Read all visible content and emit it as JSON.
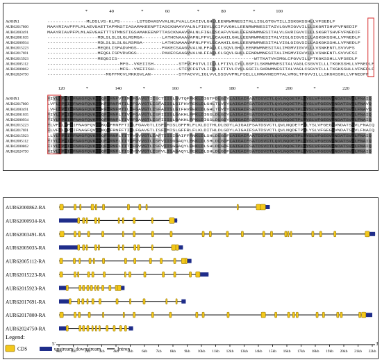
{
  "alignment": {
    "block1": {
      "ruler": [
        {
          "label": "*",
          "col": 14
        },
        {
          "label": "40",
          "col": 23
        },
        {
          "label": "*",
          "col": 34
        },
        {
          "label": "60",
          "col": 43
        },
        {
          "label": "*",
          "col": 54
        },
        {
          "label": "80",
          "col": 63
        },
        {
          "label": "*",
          "col": 74
        },
        {
          "label": "100",
          "col": 83
        }
      ],
      "rows": [
        {
          "name": "AtNHX1",
          "seq": "--------------MLDSLVS-KLPS------LSTSDHASVVALNLFVALLCACIVLGHLLEENRWMNESITALLIGLGTGVTILLISKGKSSHLLVFSEDLF"
        },
        {
          "name": "AUR62017800",
          "seq": "MAAYRIAVPFPLMLAEVGAETTAPMNSTIASAMAKEENPTIASCKNAAVVALNLFIGVLLCIFVVGHLLEENRWMNESITAIVLGVRIGVVILLLSKGRTSHVFVFNEDIF"
        },
        {
          "name": "AUR62003491",
          "seq": "MAAYRIAVPFPLMLAEVGAETTTSTMNSTIGSAMAKEENPTTASCKNAAVVALNLFIGLLSCAFVVGHLLEENRWMNESITALVLGVRIGVVILLLSKGRTSHVFVFNEDIF"
        },
        {
          "name": "AUR62001035",
          "seq": "------------------MDLSLSLSLGLRSMGA-------LATHCNAAAVAPNLFFVLLCAAHILGHLLEENRWMNESITALVIGLGIGVSILLASKGKSSHLLVFNEDLF"
        },
        {
          "name": "AUR62000934",
          "seq": "------------------MDLSLSLSLGLRSMGA-------LATHCNAAAVAPNLFFVLLCAAHILGHLLEENRWMNESITALVIGLGIGVSILLASKGKSSHLLVFNEDLF"
        },
        {
          "name": "AUR62015223",
          "seq": "------------------MEQGLISPADVHGS---------PAKECSAAGVVALNLFFALLCLSQVLGHLLEENRWMNESITALIMGMVIGVVLLLVSNKENTLSVVVFS"
        },
        {
          "name": "AUR62017691",
          "seq": "------------------MEQGLISPVDVRGS---------PAKECGAAGVVALNLFFALLCLSQVLGHLLEENRWMNESITALIMGMVIGVVLLLVSNKENTLSVVVFSI"
        },
        {
          "name": "AUR62015923",
          "seq": "------------------MEQGIIS-------------------------------------------------WTTKATVHIMGLCFGVVILLFTKGKSSHLLVFSEDLF"
        },
        {
          "name": "AUR62005112",
          "seq": "--------------------------MFG--VKEIISH---------STFVCFGTVLIILLLFTIVLCYLLGSFILSKRWMNESITALVAGLCSGVVILLLTKGKSSHLLVFNEDLF"
        },
        {
          "name": "AUR62000862",
          "seq": "--------------------------MFG--VKEIISH---------STFVCFGTVLIILLLFTIVLCYLLGSFILSKRWMNESITALVAGLCSGVVILLLTKGKSSHLLVFNEDLF"
        },
        {
          "name": "AUR62024750",
          "seq": "---------------------MGFFMCVLMKKGVLAN----------STFACVVLIGLVVLSSSVVPRLFSELLLHRWVNECMTALVMGLTFGVVILLLSKGKSSHLLVFNEDFF"
        }
      ]
    },
    "block2": {
      "ruler": [
        {
          "label": "120",
          "col": 5
        },
        {
          "label": "*",
          "col": 14
        },
        {
          "label": "140",
          "col": 25
        },
        {
          "label": "*",
          "col": 34
        },
        {
          "label": "160",
          "col": 45
        },
        {
          "label": "*",
          "col": 54
        },
        {
          "label": "180",
          "col": 65
        },
        {
          "label": "*",
          "col": 74
        },
        {
          "label": "200",
          "col": 85
        },
        {
          "label": "*",
          "col": 94
        },
        {
          "label": "220",
          "col": 105
        }
      ],
      "rows": [
        {
          "name": "AtNHX1",
          "seq": "FIYLLPPIIFNAGFQVKKKQFFRNFVTIMLFGAVGTIISCTIISLGVTQFFKKLDIGTFDLGDYLAIGAIFAATDSVCTLQVLNQDETPLLYSLVFGEGVVNDATSVVLFNAIQ"
        },
        {
          "name": "AUR62017800",
          "seq": "LVFLLPPIIFNAGFQVKKKKFFRNFMTILLFGAVGTLISFAIISLGIFHVFEKLDLGHLTLVDYLAIGAIFSATDSVCTLQVLNQDETPLLYSLVFGEGVVNDATSVVLFNAVQ"
        },
        {
          "name": "AUR62003491",
          "seq": "LVFLLPPIIFNAGFQVKKKKFFRNFMTILLFGAVGTLISFAIISLGIFHVFEKLDLGHLTLVDYLAIGAIFSATDSVCTLQVLNQDETPLLYSLVFGEGVVNDATSVVLFNAVQ"
        },
        {
          "name": "AUR62001035",
          "seq": "FIYLLPPIIFNAGFQVKKKQFFRNFLTIVLFGAVGTLISFIIISLGAKHLFPKLDIGSLDLGDYLAIGAIFSATDSVCTLQVLNQDETPLLYSLVFGEGVVNDATSVVLFNAIQ"
        },
        {
          "name": "AUR62000934",
          "seq": "FIYLLPPIIFNAGFQVKKKQFFRNFLTIVLFGAVGTLISFIIISLGAKHLFPKLDIGSLDLGDYLAIGAIFSATDSVCTLQVLNQDETPLLYSLVFGEGVVNDATSVVLFNAIQ"
        },
        {
          "name": "AUR62015223",
          "seq": "FLVFLLPPIIFNAGFQVKKKQFFRNFFTILLFGAVGTLISFIMISLGFFRLFLKLDITHLDLGDYLAIGAIFSATDSVCTLQVLNQDETPLLYSLVFGEGVVNDATSVVLFNAIQ"
        },
        {
          "name": "AUR62017691",
          "seq": "FLVFLLPPIIFNAGFQVKKKQFFRNFFTILLFGAVGTLISFIMISLGFFRLFLKLDITHLDLGDYLAIGAIFSATDSVCTLQVLNQDETPLLYSLVFGEGVVNDATSVVLFNAIQ"
        },
        {
          "name": "AUR62015923",
          "seq": "LLYLLPPIIFNAGFQVKKKQFFRNFLTITLYGVVGTLIAFTIISIGAIFFFNKLDLSHLDLGDFLAIGAIFAATDSVCTLQVLNQDETPLLYSLVFGEGVVNDATSVVLFNAIQ"
        },
        {
          "name": "AUR62005112",
          "seq": "FIYLLPPIIFNAGFQVKKKQFFRNFLTITLFGVVGTLISFVIISGGAQYLFKKLDLSHLDLGDFLAIGAIFSATDSVCTLQVLNQDETPLLYSLVFGEGVVNDATSVVLFNAIQ"
        },
        {
          "name": "AUR62000862",
          "seq": "FIYLLPPIIFNAGFQVKKKQFFRNFLTITLFGVVGTLISFVIISGGAQYLFKKLDLSHLDLGDFLAIGAIFSATDSVCTLQVLNQDETPLLYSLVFGEGVVNDATSVVLFNAIQ"
        },
        {
          "name": "AUR62024750",
          "seq": "FIYLLPPIIFNAGFQVKKKQFFRNFLTISLYGVVGTLISFVLISAGAQYLFEKLDLSHLDLGDFLAIGAIFSATDSVCTLQVLNQDETPLLYSLVFGEGVVNDATSVVLFNAIQ"
        }
      ]
    }
  },
  "gene_structure": {
    "axis": {
      "start_label": "5'",
      "end_label": "3'",
      "ticks": [
        "0kb",
        "1kb",
        "2kb",
        "3kb",
        "4kb",
        "5kb",
        "6kb",
        "7kb",
        "8kb",
        "9kb",
        "10kb",
        "11kb",
        "12kb",
        "13kb",
        "14kb",
        "15kb",
        "16kb",
        "17kb",
        "18kb",
        "19kb",
        "20kb",
        "21kb",
        "22kb"
      ]
    },
    "genes": [
      {
        "name": "AUR62000862-RA",
        "length": 14.8,
        "utr": [
          [
            14.5,
            14.8
          ]
        ],
        "cds": [
          [
            0.05,
            0.3
          ],
          [
            1.05,
            1.2
          ],
          [
            1.45,
            1.55
          ],
          [
            2.25,
            2.45
          ],
          [
            2.55,
            2.65
          ],
          [
            3.05,
            3.2
          ],
          [
            4.8,
            4.95
          ],
          [
            5.6,
            5.75
          ],
          [
            6.1,
            6.2
          ],
          [
            12.5,
            12.6
          ],
          [
            13.85,
            14.15
          ],
          [
            14.15,
            14.5
          ]
        ]
      },
      {
        "name": "AUR62000934-RA",
        "length": 8.3,
        "utr": [
          [
            0.0,
            1.3
          ],
          [
            8.1,
            8.3
          ]
        ],
        "cds": [
          [
            1.3,
            1.45
          ],
          [
            1.65,
            1.8
          ],
          [
            1.9,
            2.0
          ],
          [
            2.5,
            2.65
          ],
          [
            2.75,
            2.85
          ],
          [
            4.15,
            4.25
          ],
          [
            4.45,
            4.55
          ],
          [
            5.2,
            5.35
          ],
          [
            6.5,
            6.6
          ],
          [
            7.75,
            8.1
          ]
        ]
      },
      {
        "name": "AUR62003491-RA",
        "length": 22.2,
        "utr": [
          [
            21.8,
            22.2
          ]
        ],
        "cds": [
          [
            0.05,
            0.35
          ],
          [
            1.05,
            1.2
          ],
          [
            1.35,
            1.5
          ],
          [
            2.0,
            2.15
          ],
          [
            3.0,
            3.15
          ],
          [
            4.45,
            4.55
          ],
          [
            5.2,
            5.35
          ],
          [
            6.5,
            6.65
          ],
          [
            7.8,
            7.95
          ],
          [
            10.05,
            10.2
          ],
          [
            10.55,
            10.7
          ],
          [
            11.75,
            11.9
          ],
          [
            12.8,
            12.95
          ],
          [
            14.3,
            14.45
          ],
          [
            14.85,
            15.0
          ],
          [
            15.85,
            16.0
          ],
          [
            16.05,
            16.15
          ],
          [
            16.25,
            16.35
          ],
          [
            17.75,
            17.9
          ],
          [
            18.3,
            18.45
          ],
          [
            19.3,
            19.45
          ],
          [
            21.5,
            21.8
          ]
        ]
      },
      {
        "name": "AUR62005035-RA",
        "length": 8.7,
        "utr": [
          [
            0.0,
            1.3
          ],
          [
            8.4,
            8.7
          ]
        ],
        "cds": [
          [
            1.3,
            1.45
          ],
          [
            1.65,
            1.8
          ],
          [
            1.9,
            2.0
          ],
          [
            2.5,
            2.65
          ],
          [
            2.75,
            2.85
          ],
          [
            4.15,
            4.25
          ],
          [
            4.45,
            4.55
          ],
          [
            5.25,
            5.4
          ],
          [
            5.5,
            5.65
          ],
          [
            6.5,
            6.6
          ],
          [
            7.9,
            8.2
          ],
          [
            8.2,
            8.4
          ]
        ]
      },
      {
        "name": "AUR62005112-RA",
        "length": 9.3,
        "utr": [
          [
            9.0,
            9.3
          ]
        ],
        "cds": [
          [
            0.05,
            0.25
          ],
          [
            1.0,
            1.15
          ],
          [
            1.4,
            1.5
          ],
          [
            2.1,
            2.25
          ],
          [
            2.4,
            2.5
          ],
          [
            3.05,
            3.2
          ],
          [
            4.6,
            4.75
          ],
          [
            5.25,
            5.4
          ],
          [
            6.35,
            6.5
          ],
          [
            7.1,
            7.25
          ],
          [
            8.05,
            8.2
          ],
          [
            8.6,
            8.85
          ],
          [
            8.85,
            9.0
          ]
        ]
      },
      {
        "name": "AUR62015223-RA",
        "length": 10.5,
        "utr": [
          [
            9.9,
            10.5
          ]
        ],
        "cds": [
          [
            0.05,
            0.25
          ],
          [
            1.05,
            1.2
          ],
          [
            1.3,
            1.4
          ],
          [
            2.0,
            2.15
          ],
          [
            2.3,
            2.45
          ],
          [
            3.1,
            3.25
          ],
          [
            4.6,
            4.7
          ],
          [
            4.9,
            5.05
          ],
          [
            5.95,
            6.1
          ],
          [
            7.25,
            7.4
          ],
          [
            8.05,
            8.2
          ],
          [
            9.15,
            9.3
          ],
          [
            9.6,
            9.9
          ]
        ]
      },
      {
        "name": "AUR62015923-RA",
        "length": 4.6,
        "utr": [
          [
            0.0,
            0.5
          ],
          [
            4.35,
            4.6
          ]
        ],
        "cds": [
          [
            0.5,
            0.65
          ],
          [
            1.4,
            1.55
          ],
          [
            1.65,
            1.8
          ],
          [
            1.95,
            2.1
          ],
          [
            2.2,
            2.35
          ],
          [
            2.5,
            2.6
          ],
          [
            2.7,
            2.8
          ],
          [
            3.0,
            3.15
          ],
          [
            3.5,
            3.65
          ],
          [
            3.95,
            4.1
          ],
          [
            4.1,
            4.35
          ]
        ]
      },
      {
        "name": "AUR62017691-RA",
        "length": 8.9,
        "utr": [
          [
            0.0,
            0.7
          ],
          [
            8.6,
            8.9
          ]
        ],
        "cds": [
          [
            0.7,
            0.85
          ],
          [
            1.3,
            1.45
          ],
          [
            1.6,
            1.75
          ],
          [
            1.95,
            2.05
          ],
          [
            2.3,
            2.45
          ],
          [
            2.8,
            2.95
          ],
          [
            4.0,
            4.15
          ],
          [
            4.95,
            5.05
          ],
          [
            5.9,
            6.05
          ],
          [
            7.5,
            7.6
          ],
          [
            8.2,
            8.3
          ]
        ]
      },
      {
        "name": "AUR62017800-RA",
        "length": 22.0,
        "utr": [
          [
            21.55,
            22.0
          ]
        ],
        "cds": [
          [
            0.05,
            0.3
          ],
          [
            1.05,
            1.2
          ],
          [
            1.35,
            1.5
          ],
          [
            2.05,
            2.2
          ],
          [
            3.05,
            3.15
          ],
          [
            4.5,
            4.6
          ],
          [
            5.2,
            5.35
          ],
          [
            6.5,
            6.65
          ],
          [
            7.75,
            7.9
          ],
          [
            9.6,
            9.75
          ],
          [
            10.05,
            10.2
          ],
          [
            11.8,
            11.95
          ],
          [
            14.2,
            14.5
          ],
          [
            15.15,
            15.3
          ],
          [
            16.05,
            16.2
          ],
          [
            16.4,
            16.55
          ],
          [
            16.65,
            16.8
          ],
          [
            18.05,
            18.2
          ],
          [
            18.5,
            18.65
          ],
          [
            19.5,
            19.65
          ],
          [
            19.75,
            19.9
          ],
          [
            21.05,
            21.2
          ],
          [
            21.25,
            21.55
          ]
        ]
      },
      {
        "name": "AUR62024750-RA",
        "length": 5.2,
        "utr": [
          [
            0.0,
            0.5
          ],
          [
            4.9,
            5.2
          ]
        ],
        "cds": [
          [
            0.5,
            0.65
          ],
          [
            1.4,
            1.55
          ],
          [
            1.65,
            1.8
          ],
          [
            1.95,
            2.1
          ],
          [
            2.3,
            2.4
          ],
          [
            2.55,
            2.65
          ],
          [
            2.8,
            2.9
          ],
          [
            3.3,
            3.45
          ],
          [
            3.8,
            3.95
          ],
          [
            4.25,
            4.4
          ],
          [
            4.6,
            4.75
          ]
        ]
      }
    ],
    "legend": {
      "title": "Legend:",
      "cds_label": "CDS",
      "utr_label": "upstream/ downstream",
      "intron_label": "Intron"
    }
  },
  "colors": {
    "cds_fill": "#f3c81b",
    "cds_stroke": "#9a7a08",
    "utr_fill": "#1f2d8a",
    "intron": "#000000",
    "highlight_box": "#d62828",
    "conserved_black": "#111111",
    "conserved_dark": "#6e6e6e",
    "conserved_light": "#bdbdbd"
  }
}
